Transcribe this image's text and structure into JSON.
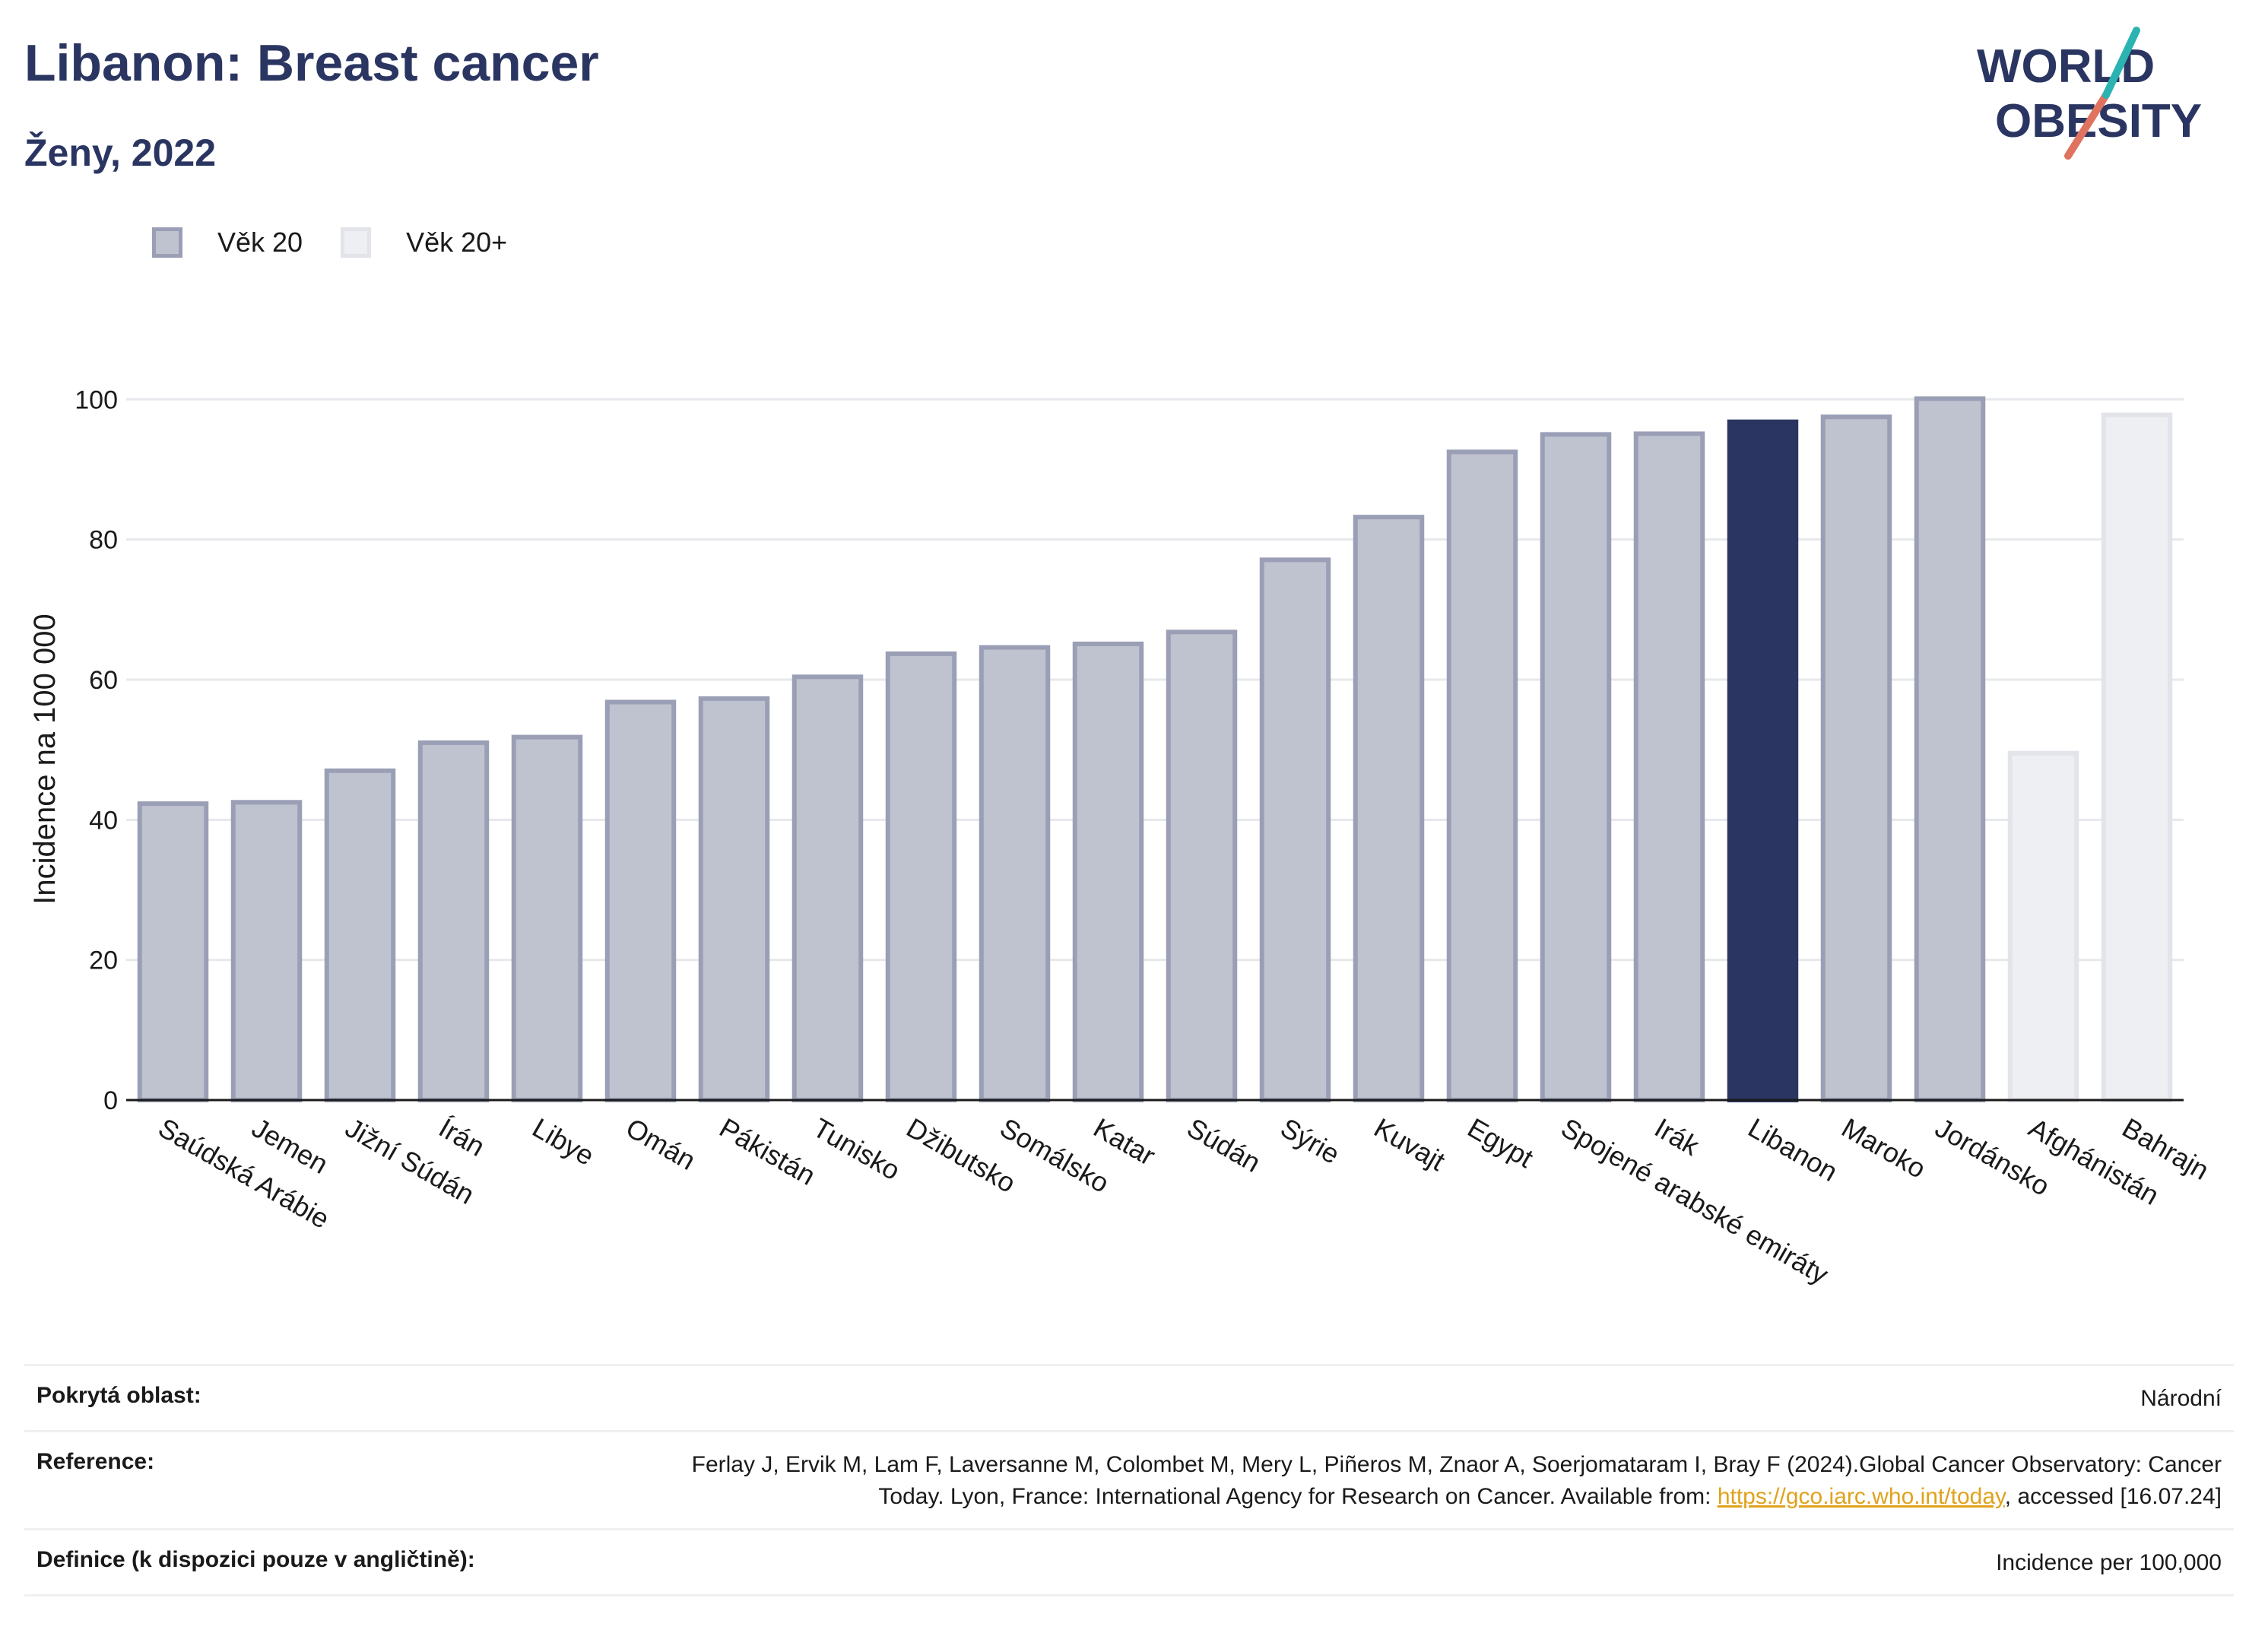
{
  "header": {
    "title": "Libanon: Breast cancer",
    "subtitle": "Ženy, 2022"
  },
  "logo": {
    "line1": "WORLD",
    "line2": "OBESITY"
  },
  "legend": [
    {
      "label": "Věk 20",
      "color": "#bfc2cf",
      "border": "#9a9fb5"
    },
    {
      "label": "Věk 20+",
      "color": "#eeeff3",
      "border": "#e2e4ea"
    }
  ],
  "colors": {
    "highlight": "#2a3561",
    "grid": "#e6e8ec",
    "axis": "#1a1a1a"
  },
  "chart_data": {
    "type": "bar",
    "title": "Libanon: Breast cancer",
    "subtitle": "Ženy, 2022",
    "ylabel": "Incidence na 100 000",
    "xlabel": "",
    "ylim": [
      0,
      106
    ],
    "yticks": [
      0,
      20,
      40,
      60,
      80,
      100
    ],
    "grid": true,
    "legend_position": "top-left",
    "categories": [
      "Saúdská Arábie",
      "Jemen",
      "Jižní Súdán",
      "Írán",
      "Libye",
      "Omán",
      "Pákistán",
      "Tunisko",
      "Džibutsko",
      "Somálsko",
      "Katar",
      "Súdán",
      "Sýrie",
      "Kuvajt",
      "Egypt",
      "Spojené arabské emiráty",
      "Irák",
      "Libanon",
      "Maroko",
      "Jordánsko",
      "Afghánistán",
      "Bahrajn"
    ],
    "values": [
      42.3,
      42.5,
      47.0,
      51.0,
      51.8,
      56.8,
      57.3,
      60.4,
      63.7,
      64.6,
      65.1,
      66.8,
      77.1,
      83.2,
      92.5,
      95.0,
      95.1,
      96.8,
      97.5,
      100.1,
      49.5,
      97.8
    ],
    "series_group": [
      "Věk 20",
      "Věk 20",
      "Věk 20",
      "Věk 20",
      "Věk 20",
      "Věk 20",
      "Věk 20",
      "Věk 20",
      "Věk 20",
      "Věk 20",
      "Věk 20",
      "Věk 20",
      "Věk 20",
      "Věk 20",
      "Věk 20",
      "Věk 20",
      "Věk 20",
      "Věk 20",
      "Věk 20",
      "Věk 20",
      "Věk 20+",
      "Věk 20+"
    ],
    "highlight": "Libanon"
  },
  "footer": {
    "coverage_label": "Pokrytá oblast:",
    "coverage_value": "Národní",
    "reference_label": "Reference:",
    "reference_text_1": "Ferlay J, Ervik M, Lam F, Laversanne M, Colombet M, Mery L, Piñeros M, Znaor A, Soerjomataram I, Bray F (2024).Global Cancer Observatory: Cancer Today. Lyon, France: International Agency for Research on Cancer. Available from: ",
    "reference_link": "https://gco.iarc.who.int/today",
    "reference_text_2": ", accessed [16.07.24]",
    "definition_label": "Definice (k dispozici pouze v angličtině):",
    "definition_value": "Incidence per 100,000"
  }
}
